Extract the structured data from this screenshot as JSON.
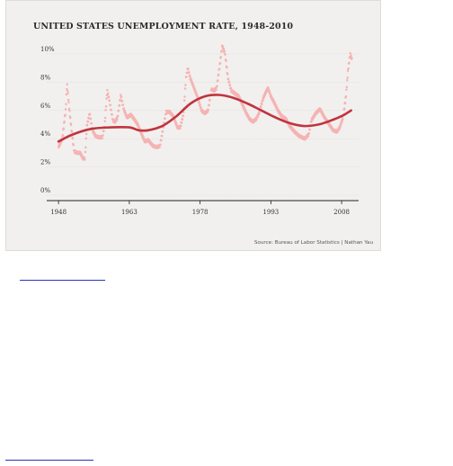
{
  "chart_data": {
    "type": "scatter",
    "title": "UNITED STATES UNEMPLOYMENT RATE, 1948-2010",
    "source": "Source: Bureau of Labor Statistics | Nathan Yau",
    "x_ticks": [
      "1948",
      "1963",
      "1978",
      "1993",
      "2008"
    ],
    "y_ticks": [
      "0%",
      "2%",
      "4%",
      "6%",
      "8%",
      "10%"
    ],
    "xlim": [
      1948,
      2010
    ],
    "ylim": [
      0,
      10
    ],
    "grid": true,
    "colors": {
      "points": "#f5b3b3",
      "trend": "#c0343e",
      "grid": "#dadada"
    },
    "series": [
      {
        "kind": "monthly-points",
        "anchors": [
          [
            1948.0,
            3.4
          ],
          [
            1948.8,
            4.0
          ],
          [
            1949.5,
            6.0
          ],
          [
            1949.8,
            7.9
          ],
          [
            1950.3,
            6.0
          ],
          [
            1950.8,
            4.5
          ],
          [
            1951.3,
            3.1
          ],
          [
            1952.0,
            3.0
          ],
          [
            1952.6,
            3.0
          ],
          [
            1953.2,
            2.6
          ],
          [
            1953.6,
            2.6
          ],
          [
            1954.0,
            4.9
          ],
          [
            1954.6,
            5.8
          ],
          [
            1955.2,
            4.6
          ],
          [
            1955.8,
            4.2
          ],
          [
            1956.5,
            4.1
          ],
          [
            1957.3,
            4.1
          ],
          [
            1957.8,
            5.0
          ],
          [
            1958.3,
            7.4
          ],
          [
            1958.8,
            6.7
          ],
          [
            1959.5,
            5.3
          ],
          [
            1960.0,
            5.2
          ],
          [
            1960.5,
            5.5
          ],
          [
            1961.2,
            7.1
          ],
          [
            1961.8,
            6.1
          ],
          [
            1962.5,
            5.5
          ],
          [
            1963.3,
            5.7
          ],
          [
            1964.0,
            5.4
          ],
          [
            1964.8,
            5.0
          ],
          [
            1965.5,
            4.4
          ],
          [
            1966.3,
            3.8
          ],
          [
            1967.0,
            3.9
          ],
          [
            1968.0,
            3.5
          ],
          [
            1968.8,
            3.4
          ],
          [
            1969.5,
            3.5
          ],
          [
            1970.2,
            4.8
          ],
          [
            1970.8,
            5.9
          ],
          [
            1971.5,
            5.9
          ],
          [
            1972.3,
            5.6
          ],
          [
            1973.2,
            4.8
          ],
          [
            1973.8,
            4.8
          ],
          [
            1974.5,
            5.8
          ],
          [
            1975.0,
            8.3
          ],
          [
            1975.4,
            9.0
          ],
          [
            1975.9,
            8.3
          ],
          [
            1976.6,
            7.7
          ],
          [
            1977.5,
            6.9
          ],
          [
            1978.3,
            6.0
          ],
          [
            1979.0,
            5.8
          ],
          [
            1979.7,
            6.0
          ],
          [
            1980.4,
            7.5
          ],
          [
            1981.0,
            7.4
          ],
          [
            1981.5,
            7.6
          ],
          [
            1982.2,
            9.3
          ],
          [
            1982.7,
            10.6
          ],
          [
            1983.3,
            10.0
          ],
          [
            1983.9,
            8.3
          ],
          [
            1984.6,
            7.4
          ],
          [
            1985.4,
            7.2
          ],
          [
            1986.2,
            7.0
          ],
          [
            1987.0,
            6.4
          ],
          [
            1987.8,
            5.8
          ],
          [
            1988.5,
            5.4
          ],
          [
            1989.2,
            5.2
          ],
          [
            1989.9,
            5.4
          ],
          [
            1990.6,
            5.9
          ],
          [
            1991.3,
            6.8
          ],
          [
            1991.8,
            7.2
          ],
          [
            1992.4,
            7.6
          ],
          [
            1993.0,
            7.0
          ],
          [
            1993.8,
            6.5
          ],
          [
            1994.5,
            6.0
          ],
          [
            1995.3,
            5.6
          ],
          [
            1996.2,
            5.4
          ],
          [
            1997.0,
            4.9
          ],
          [
            1998.0,
            4.5
          ],
          [
            1999.0,
            4.2
          ],
          [
            2000.2,
            4.0
          ],
          [
            2001.0,
            4.3
          ],
          [
            2001.6,
            5.3
          ],
          [
            2002.5,
            5.8
          ],
          [
            2003.4,
            6.1
          ],
          [
            2004.2,
            5.6
          ],
          [
            2005.2,
            5.1
          ],
          [
            2006.2,
            4.6
          ],
          [
            2007.0,
            4.5
          ],
          [
            2007.6,
            4.8
          ],
          [
            2008.3,
            5.5
          ],
          [
            2008.9,
            7.0
          ],
          [
            2009.4,
            9.0
          ],
          [
            2009.8,
            10.0
          ],
          [
            2010.2,
            9.6
          ]
        ]
      },
      {
        "kind": "trend-line",
        "points": [
          [
            1948,
            3.8
          ],
          [
            1951,
            4.3
          ],
          [
            1955,
            4.7
          ],
          [
            1959,
            4.8
          ],
          [
            1963,
            4.8
          ],
          [
            1965,
            4.6
          ],
          [
            1967,
            4.6
          ],
          [
            1970,
            4.9
          ],
          [
            1973,
            5.6
          ],
          [
            1976,
            6.5
          ],
          [
            1979,
            7.0
          ],
          [
            1982,
            7.1
          ],
          [
            1985,
            6.9
          ],
          [
            1988,
            6.5
          ],
          [
            1991,
            6.0
          ],
          [
            1994,
            5.5
          ],
          [
            1997,
            5.1
          ],
          [
            2000,
            4.9
          ],
          [
            2003,
            5.0
          ],
          [
            2005,
            5.2
          ],
          [
            2008,
            5.6
          ],
          [
            2010,
            6.0
          ]
        ]
      }
    ]
  },
  "links": [
    {
      "name": "link-underline-top"
    },
    {
      "name": "link-underline-bottom"
    }
  ]
}
